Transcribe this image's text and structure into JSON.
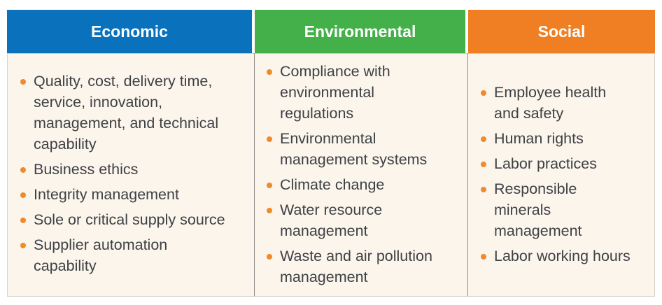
{
  "colors": {
    "economic": "#0a72bd",
    "environmental": "#44b04a",
    "social": "#ef7f22",
    "bullet": "#ef8a2d"
  },
  "columns": [
    {
      "title": "Economic",
      "items": [
        "Quality, cost, delivery time, service, innovation, management, and technical capability",
        "Business ethics",
        "Integrity management",
        "Sole or critical supply source",
        "Supplier automation capability"
      ]
    },
    {
      "title": "Environmental",
      "items": [
        "Compliance with environmental regulations",
        "Environmental management systems",
        "Climate change",
        "Water resource management",
        "Waste and air pollution management"
      ]
    },
    {
      "title": "Social",
      "items": [
        "Employee health and safety",
        "Human rights",
        "Labor practices",
        "Responsible minerals management",
        "Labor working hours"
      ]
    }
  ]
}
